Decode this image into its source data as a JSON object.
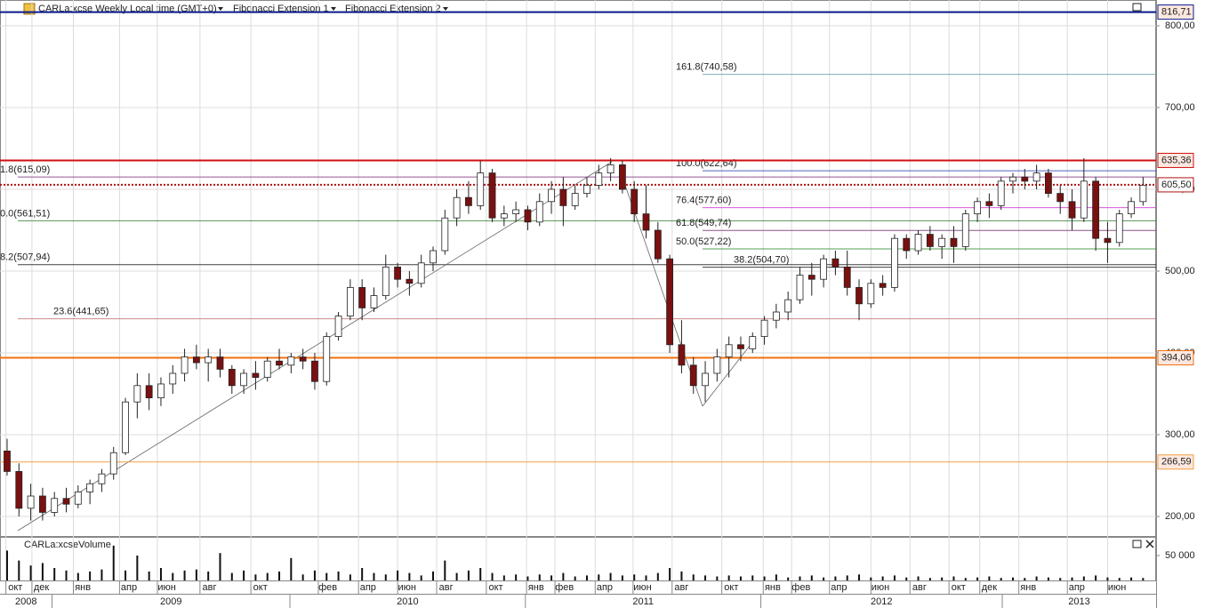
{
  "chart_data": {
    "type": "candlestick",
    "title": "CARLa:xcse Weekly Local time (GMT+0)",
    "indicators": [
      "Fibonacci Extension 1",
      "Fibonacci Extension 2"
    ],
    "xlim": [
      -0.6,
      97.1
    ],
    "ylim": [
      176.1,
      831.5
    ],
    "yticks": [
      {
        "value": 800,
        "label": "800,00"
      },
      {
        "value": 700,
        "label": "700,00"
      },
      {
        "value": 600,
        "label": "600,00"
      },
      {
        "value": 500,
        "label": "500,00"
      },
      {
        "value": 400,
        "label": "400,00"
      },
      {
        "value": 300,
        "label": "300,00"
      },
      {
        "value": 200,
        "label": "200,00"
      }
    ],
    "grid": true,
    "up_color": "#ffffff",
    "down_color": "#7a1010",
    "open": [
      280,
      255,
      210,
      225,
      205,
      222,
      215,
      230,
      240,
      252,
      278,
      340,
      360,
      345,
      362,
      375,
      395,
      388,
      395,
      380,
      360,
      375,
      370,
      390,
      385,
      395,
      390,
      365,
      420,
      445,
      480,
      455,
      470,
      505,
      490,
      485,
      510,
      525,
      565,
      590,
      580,
      620,
      565,
      570,
      575,
      560,
      585,
      600,
      580,
      595,
      605,
      620,
      630,
      600,
      570,
      550,
      515,
      410,
      385,
      360,
      375,
      395,
      410,
      405,
      420,
      440,
      450,
      465,
      495,
      490,
      515,
      505,
      480,
      460,
      485,
      480,
      540,
      525,
      545,
      530,
      540,
      530,
      570,
      585,
      580,
      610,
      615,
      610,
      620,
      595,
      585,
      565,
      610,
      540,
      535,
      570,
      585
    ],
    "high": [
      295,
      265,
      240,
      235,
      230,
      235,
      238,
      245,
      258,
      285,
      345,
      375,
      375,
      370,
      385,
      405,
      410,
      405,
      405,
      385,
      380,
      390,
      395,
      405,
      400,
      405,
      400,
      425,
      450,
      490,
      490,
      480,
      520,
      510,
      500,
      520,
      530,
      575,
      600,
      610,
      635,
      625,
      580,
      585,
      580,
      595,
      610,
      615,
      605,
      615,
      630,
      638,
      635,
      610,
      605,
      560,
      520,
      440,
      395,
      390,
      405,
      420,
      420,
      425,
      445,
      460,
      475,
      505,
      510,
      520,
      525,
      525,
      490,
      490,
      495,
      545,
      545,
      550,
      555,
      545,
      555,
      575,
      590,
      595,
      615,
      620,
      625,
      630,
      625,
      605,
      600,
      638,
      615,
      560,
      575,
      590,
      615
    ],
    "low": [
      250,
      200,
      195,
      195,
      200,
      205,
      210,
      215,
      230,
      245,
      275,
      320,
      330,
      335,
      350,
      365,
      380,
      365,
      370,
      350,
      350,
      355,
      365,
      380,
      375,
      380,
      355,
      360,
      415,
      440,
      440,
      450,
      465,
      480,
      470,
      480,
      500,
      520,
      555,
      570,
      575,
      560,
      555,
      560,
      550,
      555,
      570,
      555,
      575,
      590,
      600,
      610,
      595,
      560,
      540,
      510,
      400,
      375,
      350,
      340,
      365,
      370,
      390,
      400,
      410,
      430,
      440,
      460,
      470,
      480,
      495,
      470,
      440,
      455,
      470,
      475,
      515,
      520,
      525,
      515,
      510,
      525,
      560,
      565,
      575,
      595,
      600,
      600,
      590,
      570,
      550,
      560,
      525,
      510,
      530,
      565,
      580
    ],
    "close": [
      255,
      210,
      225,
      205,
      222,
      215,
      230,
      240,
      252,
      278,
      340,
      360,
      345,
      362,
      375,
      395,
      388,
      395,
      380,
      360,
      375,
      370,
      390,
      385,
      395,
      390,
      365,
      420,
      445,
      480,
      455,
      470,
      505,
      490,
      485,
      510,
      525,
      565,
      590,
      580,
      620,
      565,
      570,
      575,
      560,
      585,
      600,
      580,
      595,
      605,
      620,
      630,
      600,
      570,
      550,
      515,
      410,
      385,
      360,
      375,
      395,
      410,
      405,
      420,
      440,
      450,
      465,
      495,
      490,
      515,
      505,
      480,
      460,
      485,
      480,
      540,
      525,
      545,
      530,
      540,
      530,
      570,
      585,
      580,
      610,
      615,
      610,
      620,
      595,
      585,
      565,
      610,
      540,
      535,
      570,
      585,
      605
    ],
    "xticks": [
      {
        "value": 0.7,
        "label": "окт"
      },
      {
        "value": 2.9,
        "label": "дек"
      },
      {
        "value": 6.4,
        "label": "янв"
      },
      {
        "value": 10.3,
        "label": "апр"
      },
      {
        "value": 13.5,
        "label": "июн"
      },
      {
        "value": 17.1,
        "label": "авг"
      },
      {
        "value": 21.4,
        "label": "окт"
      },
      {
        "value": 27.1,
        "label": "фев"
      },
      {
        "value": 30.5,
        "label": "апр"
      },
      {
        "value": 33.8,
        "label": "июн"
      },
      {
        "value": 37.1,
        "label": "авг"
      },
      {
        "value": 41.3,
        "label": "окт"
      },
      {
        "value": 44.7,
        "label": "янв"
      },
      {
        "value": 47.1,
        "label": "фев"
      },
      {
        "value": 50.5,
        "label": "апр"
      },
      {
        "value": 53.7,
        "label": "июн"
      },
      {
        "value": 57.0,
        "label": "авг"
      },
      {
        "value": 61.2,
        "label": "окт"
      },
      {
        "value": 64.7,
        "label": "янв"
      },
      {
        "value": 67.1,
        "label": "фев"
      },
      {
        "value": 70.3,
        "label": "апр"
      },
      {
        "value": 73.8,
        "label": "июн"
      },
      {
        "value": 77.1,
        "label": "авг"
      },
      {
        "value": 80.4,
        "label": "окт"
      },
      {
        "value": 83.0,
        "label": "дек"
      },
      {
        "value": 86.3,
        "label": "янв"
      },
      {
        "value": 90.4,
        "label": "апр"
      },
      {
        "value": 93.8,
        "label": "июн"
      }
    ],
    "years": [
      {
        "value": -16.2,
        "label": "2008"
      },
      {
        "value": 3.8,
        "label": "2009"
      },
      {
        "value": 23.9,
        "label": "2010"
      },
      {
        "value": 43.8,
        "label": "2011"
      },
      {
        "value": 63.7,
        "label": "2012"
      },
      {
        "value": 84.1,
        "label": "2013"
      }
    ],
    "levels": [
      {
        "value": 816.71,
        "label": "816,71",
        "color": "#0a1a8c",
        "style": "solid",
        "width": 2
      },
      {
        "value": 635.36,
        "label": "635,36",
        "color": "#d01010",
        "style": "solid",
        "width": 2
      },
      {
        "value": 605.5,
        "label": "605,50",
        "color": "#b01010",
        "style": "dotted",
        "width": 2
      },
      {
        "value": 394.06,
        "label": "394,06",
        "color": "#f07010",
        "style": "solid",
        "width": 2
      },
      {
        "value": 266.59,
        "label": "266,59",
        "color": "#f0a040",
        "style": "solid",
        "width": 1
      }
    ],
    "fibonacci_1": [
      {
        "value": 615.09,
        "label": "1.8(615,09)",
        "color": "#7a2a7a"
      },
      {
        "value": 561.51,
        "label": "0.0(561,51)",
        "color": "#2a7a2a"
      },
      {
        "value": 507.94,
        "label": "8.2(507,94)",
        "color": "#111111"
      },
      {
        "value": 441.65,
        "label": "23.6(441,65)",
        "color": "#c07070"
      }
    ],
    "fibonacci_2": [
      {
        "value": 740.58,
        "label": "161.8(740,58)",
        "color": "#5a9aaa"
      },
      {
        "value": 622.64,
        "label": "100.0(622,64)",
        "color": "#2a3ab0"
      },
      {
        "value": 577.6,
        "label": "76.4(577,60)",
        "color": "#d030d0"
      },
      {
        "value": 549.74,
        "label": "61.8(549,74)",
        "color": "#6a2a6a"
      },
      {
        "value": 527.22,
        "label": "50.0(527,22)",
        "color": "#2a8a2a"
      },
      {
        "value": 504.7,
        "label": "38.2(504,70)",
        "color": "#111111"
      }
    ],
    "volume": {
      "title": "CARLa:xcseVolume",
      "color": "#111111",
      "ylim": [
        0,
        85700
      ],
      "yticks": [
        {
          "value": 50000,
          "label": "50 000"
        }
      ],
      "values": [
        60000,
        40000,
        30000,
        35000,
        25000,
        20000,
        15000,
        18000,
        22000,
        70000,
        20000,
        50000,
        18000,
        25000,
        15000,
        20000,
        22000,
        18000,
        55000,
        15000,
        20000,
        12000,
        15000,
        18000,
        45000,
        12000,
        20000,
        15000,
        18000,
        12000,
        25000,
        15000,
        12000,
        20000,
        15000,
        10000,
        18000,
        40000,
        15000,
        20000,
        25000,
        15000,
        10000,
        12000,
        8000,
        12000,
        10000,
        15000,
        8000,
        10000,
        12000,
        15000,
        10000,
        12000,
        10000,
        15000,
        25000,
        18000,
        12000,
        10000,
        8000,
        10000,
        8000,
        10000,
        8000,
        12000,
        6000,
        8000,
        10000,
        6000,
        8000,
        10000,
        12000,
        6000,
        8000,
        10000,
        6000,
        8000,
        5000,
        6000,
        8000,
        5000,
        6000,
        8000,
        5000,
        6000,
        5000,
        8000,
        6000,
        5000,
        6000,
        8000,
        10000,
        6000,
        5000,
        6000,
        5000
      ]
    }
  }
}
